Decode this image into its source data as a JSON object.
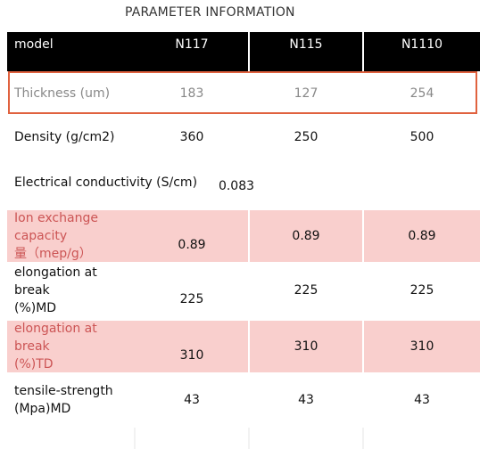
{
  "header": {
    "title": "PARAMETER INFORMATION"
  },
  "table": {
    "columns": [
      "model",
      "N117",
      "N115",
      "N1110"
    ],
    "rows": [
      {
        "label": "Thickness (um)",
        "values": [
          "183",
          "127",
          "254"
        ]
      },
      {
        "label": "Density (g/cm2)",
        "values": [
          "360",
          "250",
          "500"
        ]
      },
      {
        "label": "Electrical conductivity (S/cm)",
        "values": [
          "0.083"
        ]
      },
      {
        "label": "Ion exchange capacity\n量（mep/g）",
        "values": [
          "0.89",
          "0.89",
          "0.89"
        ]
      },
      {
        "label": "elongation at break\n(%)MD",
        "values": [
          "225",
          "225",
          "225"
        ]
      },
      {
        "label": "elongation at break\n(%)TD",
        "values": [
          "310",
          "310",
          "310"
        ]
      },
      {
        "label": "tensile-strength\n(Mpa)MD",
        "values": [
          "43",
          "43",
          "43"
        ]
      }
    ]
  }
}
